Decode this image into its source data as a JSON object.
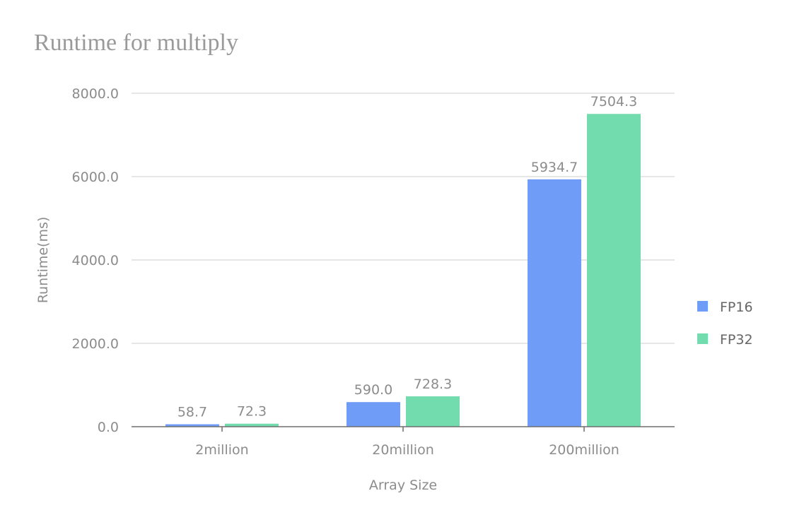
{
  "chart_data": {
    "type": "bar",
    "title": "Runtime for multiply",
    "xlabel": "Array Size",
    "ylabel": "Runtime(ms)",
    "categories": [
      "2million",
      "20million",
      "200million"
    ],
    "series": [
      {
        "name": "FP16",
        "values": [
          58.7,
          590.0,
          5934.7
        ],
        "color": "#6f9cf7"
      },
      {
        "name": "FP32",
        "values": [
          72.3,
          728.3,
          7504.3
        ],
        "color": "#72dcae"
      }
    ],
    "ylim": [
      0,
      8000
    ],
    "yticks": [
      "0.0",
      "2000.0",
      "4000.0",
      "6000.0",
      "8000.0"
    ],
    "value_labels": [
      [
        "58.7",
        "590.0",
        "5934.7"
      ],
      [
        "72.3",
        "728.3",
        "7504.3"
      ]
    ],
    "grid": true,
    "legend_position": "right"
  }
}
